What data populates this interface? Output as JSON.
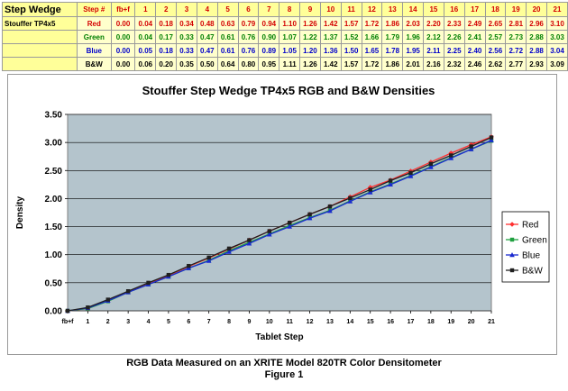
{
  "table": {
    "title": "Step Wedge",
    "film": "Stouffer TP4x5",
    "step_header": "Step #",
    "steps": [
      "fb+f",
      "1",
      "2",
      "3",
      "4",
      "5",
      "6",
      "7",
      "8",
      "9",
      "10",
      "11",
      "12",
      "13",
      "14",
      "15",
      "16",
      "17",
      "18",
      "19",
      "20",
      "21"
    ],
    "rows": [
      {
        "label": "Red",
        "color": "#d40000",
        "values": [
          "0.00",
          "0.04",
          "0.18",
          "0.34",
          "0.48",
          "0.63",
          "0.79",
          "0.94",
          "1.10",
          "1.26",
          "1.42",
          "1.57",
          "1.72",
          "1.86",
          "2.03",
          "2.20",
          "2.33",
          "2.49",
          "2.65",
          "2.81",
          "2.96",
          "3.10"
        ]
      },
      {
        "label": "Green",
        "color": "#008000",
        "values": [
          "0.00",
          "0.04",
          "0.17",
          "0.33",
          "0.47",
          "0.61",
          "0.76",
          "0.90",
          "1.07",
          "1.22",
          "1.37",
          "1.52",
          "1.66",
          "1.79",
          "1.96",
          "2.12",
          "2.26",
          "2.41",
          "2.57",
          "2.73",
          "2.88",
          "3.03"
        ]
      },
      {
        "label": "Blue",
        "color": "#0000cc",
        "values": [
          "0.00",
          "0.05",
          "0.18",
          "0.33",
          "0.47",
          "0.61",
          "0.76",
          "0.89",
          "1.05",
          "1.20",
          "1.36",
          "1.50",
          "1.65",
          "1.78",
          "1.95",
          "2.11",
          "2.25",
          "2.40",
          "2.56",
          "2.72",
          "2.88",
          "3.04"
        ]
      },
      {
        "label": "B&W",
        "color": "#000000",
        "values": [
          "0.00",
          "0.06",
          "0.20",
          "0.35",
          "0.50",
          "0.64",
          "0.80",
          "0.95",
          "1.11",
          "1.26",
          "1.42",
          "1.57",
          "1.72",
          "1.86",
          "2.01",
          "2.16",
          "2.32",
          "2.46",
          "2.62",
          "2.77",
          "2.93",
          "3.09"
        ]
      }
    ]
  },
  "chart_data": {
    "type": "line",
    "title": "Stouffer Step Wedge TP4x5 RGB and B&W Densities",
    "xlabel": "Tablet Step",
    "ylabel": "Density",
    "categories": [
      "fb+f",
      "1",
      "2",
      "3",
      "4",
      "5",
      "6",
      "7",
      "8",
      "9",
      "10",
      "11",
      "12",
      "13",
      "14",
      "15",
      "16",
      "17",
      "18",
      "19",
      "20",
      "21"
    ],
    "ylim": [
      0,
      3.5
    ],
    "ytick_labels": [
      "0.00",
      "0.50",
      "1.00",
      "1.50",
      "2.00",
      "2.50",
      "3.00",
      "3.50"
    ],
    "grid": true,
    "legend": "right",
    "plot_background": "#b4c4cc",
    "series": [
      {
        "name": "Red",
        "color": "#ff3030",
        "marker": "diamond",
        "values": [
          0.0,
          0.04,
          0.18,
          0.34,
          0.48,
          0.63,
          0.79,
          0.94,
          1.1,
          1.26,
          1.42,
          1.57,
          1.72,
          1.86,
          2.03,
          2.2,
          2.33,
          2.49,
          2.65,
          2.81,
          2.96,
          3.1
        ]
      },
      {
        "name": "Green",
        "color": "#20a040",
        "marker": "square",
        "values": [
          0.0,
          0.04,
          0.17,
          0.33,
          0.47,
          0.61,
          0.76,
          0.9,
          1.07,
          1.22,
          1.37,
          1.52,
          1.66,
          1.79,
          1.96,
          2.12,
          2.26,
          2.41,
          2.57,
          2.73,
          2.88,
          3.03
        ]
      },
      {
        "name": "Blue",
        "color": "#1a2ad0",
        "marker": "triangle",
        "values": [
          0.0,
          0.05,
          0.18,
          0.33,
          0.47,
          0.61,
          0.76,
          0.89,
          1.05,
          1.2,
          1.36,
          1.5,
          1.65,
          1.78,
          1.95,
          2.11,
          2.25,
          2.4,
          2.56,
          2.72,
          2.88,
          3.04
        ]
      },
      {
        "name": "B&W",
        "color": "#202020",
        "marker": "square",
        "values": [
          0.0,
          0.06,
          0.2,
          0.35,
          0.5,
          0.64,
          0.8,
          0.95,
          1.11,
          1.26,
          1.42,
          1.57,
          1.72,
          1.86,
          2.01,
          2.16,
          2.32,
          2.46,
          2.62,
          2.77,
          2.93,
          3.09
        ]
      }
    ]
  },
  "caption": {
    "line1": "RGB Data Measured on an XRITE Model 820TR Color Densitometer",
    "line2": "Figure 1"
  }
}
